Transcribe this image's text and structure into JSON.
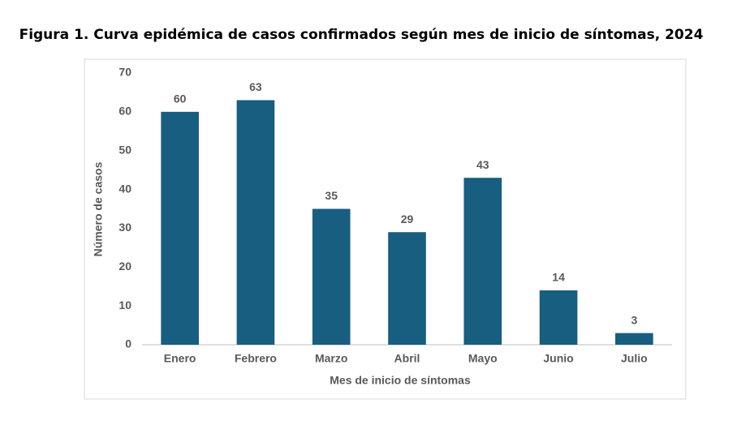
{
  "chart_data": {
    "type": "bar",
    "title": "Figura 1. Curva epidémica de casos confirmados según mes de inicio de síntomas, 2024",
    "x_label": "Mes de inicio de síntomas",
    "y_label": "Número de casos",
    "categories": [
      "Enero",
      "Febrero",
      "Marzo",
      "Abril",
      "Mayo",
      "Junio",
      "Julio"
    ],
    "values": [
      60,
      63,
      35,
      29,
      43,
      14,
      3
    ],
    "color": "#175e80",
    "ylim": [
      0,
      70
    ],
    "yticks": [
      0,
      10,
      20,
      30,
      40,
      50,
      60,
      70
    ],
    "grid": false
  }
}
